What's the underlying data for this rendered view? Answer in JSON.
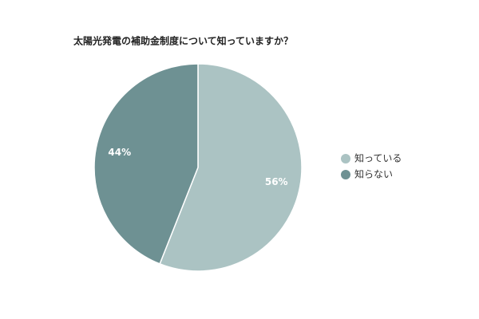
{
  "chart_data": {
    "type": "pie",
    "title": "太陽光発電の補助金制度について知っていますか？",
    "categories": [
      "知っている",
      "知らない"
    ],
    "values": [
      56,
      44
    ],
    "value_labels": [
      "56%",
      "44%"
    ],
    "colors": [
      "#abc3c3",
      "#6e9193"
    ],
    "legend": "right"
  }
}
